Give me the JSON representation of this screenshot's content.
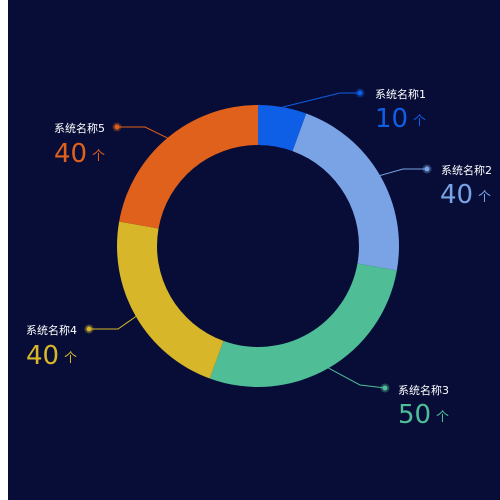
{
  "chart_data": {
    "type": "pie",
    "unit": "个",
    "title": "",
    "legend": "none",
    "series": [
      {
        "name": "系统名称1",
        "value": 10,
        "color": "#0e5ee6"
      },
      {
        "name": "系统名称2",
        "value": 40,
        "color": "#7aa3e5"
      },
      {
        "name": "系统名称3",
        "value": 50,
        "color": "#4fbe97"
      },
      {
        "name": "系统名称4",
        "value": 40,
        "color": "#d7b62a"
      },
      {
        "name": "系统名称5",
        "value": 40,
        "color": "#e0611b"
      }
    ]
  },
  "colors": {
    "background": "#070d37",
    "label_text": "#ffffff"
  }
}
